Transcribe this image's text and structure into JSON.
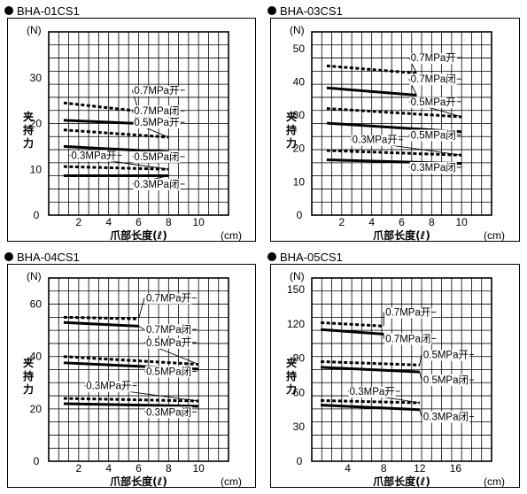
{
  "chart_data": [
    {
      "type": "line",
      "title": "BHA-01CS1",
      "ylabel": "夹持力",
      "yunit": "(N)",
      "xlabel": "爪部长度(ℓ)",
      "xunit": "(cm)",
      "xlim": [
        0,
        12
      ],
      "ylim": [
        0,
        40
      ],
      "xticks": [
        "0",
        "2",
        "4",
        "6",
        "8",
        "10"
      ],
      "yticks": [
        "10",
        "20",
        "30"
      ],
      "series": [
        {
          "name": "0.7MPa开",
          "style": "dashed",
          "x": [
            1,
            6
          ],
          "y": [
            24.5,
            22.7
          ],
          "label_x": 5.7,
          "label_y": 26.5
        },
        {
          "name": "0.7MPa闭",
          "style": "solid",
          "x": [
            1,
            6
          ],
          "y": [
            20.7,
            20.0
          ],
          "label_x": 5.7,
          "label_y": 22.0
        },
        {
          "name": "0.5MPa开",
          "style": "dashed",
          "x": [
            1,
            8
          ],
          "y": [
            18.6,
            17.0
          ],
          "label_x": 5.7,
          "label_y": 19.5
        },
        {
          "name": "0.5MPa闭",
          "style": "solid",
          "x": [
            1,
            8
          ],
          "y": [
            15.0,
            13.8
          ],
          "label_x": 5.7,
          "label_y": 12.0
        },
        {
          "name": "0.3MPa开",
          "style": "dashed",
          "x": [
            1,
            8
          ],
          "y": [
            10.6,
            10.0
          ],
          "label_x": 1.5,
          "label_y": 12.3
        },
        {
          "name": "0.3MPa闭",
          "style": "solid",
          "x": [
            1,
            8
          ],
          "y": [
            8.6,
            8.6
          ],
          "label_x": 5.7,
          "label_y": 6.0
        }
      ]
    },
    {
      "type": "line",
      "title": "BHA-03CS1",
      "ylabel": "夹持力",
      "yunit": "(N)",
      "xlabel": "爪部长度(ℓ)",
      "xunit": "(cm)",
      "xlim": [
        0,
        12
      ],
      "ylim": [
        0,
        55
      ],
      "xticks": [
        "0",
        "2",
        "4",
        "6",
        "8",
        "10"
      ],
      "yticks": [
        "10",
        "20",
        "30",
        "40",
        "50"
      ],
      "series": [
        {
          "name": "0.7MPa开",
          "style": "dashed",
          "x": [
            1,
            7
          ],
          "y": [
            44.8,
            42.6
          ],
          "label_x": 6.6,
          "label_y": 46.2
        },
        {
          "name": "0.7MPa闭",
          "style": "solid",
          "x": [
            1,
            7
          ],
          "y": [
            38.2,
            36.0
          ],
          "label_x": 6.6,
          "label_y": 39.8
        },
        {
          "name": "0.5MPa开",
          "style": "dashed",
          "x": [
            1,
            10
          ],
          "y": [
            32.0,
            29.5
          ],
          "label_x": 6.6,
          "label_y": 33.0
        },
        {
          "name": "0.5MPa闭",
          "style": "solid",
          "x": [
            1,
            10
          ],
          "y": [
            27.6,
            25.0
          ],
          "label_x": 6.6,
          "label_y": 23.0
        },
        {
          "name": "0.3MPa开",
          "style": "dashed",
          "x": [
            1,
            10
          ],
          "y": [
            19.4,
            18.0
          ],
          "label_x": 2.7,
          "label_y": 21.6
        },
        {
          "name": "0.3MPa闭",
          "style": "solid",
          "x": [
            1,
            10
          ],
          "y": [
            16.6,
            15.5
          ],
          "label_x": 6.6,
          "label_y": 13.3
        }
      ]
    },
    {
      "type": "line",
      "title": "BHA-04CS1",
      "ylabel": "夹持力",
      "yunit": "(N)",
      "xlabel": "爪部长度(ℓ)",
      "xunit": "(cm)",
      "xlim": [
        0,
        12
      ],
      "ylim": [
        0,
        70
      ],
      "xticks": [
        "0",
        "2",
        "4",
        "6",
        "8",
        "10"
      ],
      "yticks": [
        "20",
        "40",
        "60"
      ],
      "series": [
        {
          "name": "0.7MPa开",
          "style": "dashed",
          "x": [
            1,
            6
          ],
          "y": [
            55.0,
            54.4
          ],
          "label_x": 6.5,
          "label_y": 61.0
        },
        {
          "name": "0.7MPa闭",
          "style": "solid",
          "x": [
            1,
            6
          ],
          "y": [
            53.0,
            51.6
          ],
          "label_x": 6.5,
          "label_y": 49.0
        },
        {
          "name": "0.5MPa开",
          "style": "dashed",
          "x": [
            1,
            10
          ],
          "y": [
            40.0,
            37.0
          ],
          "label_x": 6.5,
          "label_y": 44.0
        },
        {
          "name": "0.5MPa闭",
          "style": "solid",
          "x": [
            1,
            10
          ],
          "y": [
            37.6,
            35.2
          ],
          "label_x": 6.5,
          "label_y": 33.0
        },
        {
          "name": "0.3MPa开",
          "style": "dashed",
          "x": [
            1,
            10
          ],
          "y": [
            24.0,
            23.0
          ],
          "label_x": 2.5,
          "label_y": 27.5
        },
        {
          "name": "0.3MPa闭",
          "style": "solid",
          "x": [
            1,
            10
          ],
          "y": [
            22.0,
            21.0
          ],
          "label_x": 6.5,
          "label_y": 17.5
        }
      ]
    },
    {
      "type": "line",
      "title": "BHA-05CS1",
      "ylabel": "夹持力",
      "yunit": "(N)",
      "xlabel": "爪部长度(ℓ)",
      "xunit": "(cm)",
      "xlim": [
        0,
        20
      ],
      "ylim": [
        0,
        160
      ],
      "xticks": [
        "0",
        "4",
        "8",
        "12",
        "16"
      ],
      "yticks": [
        "30",
        "60",
        "90",
        "120",
        "150"
      ],
      "series": [
        {
          "name": "0.7MPa开",
          "style": "dashed",
          "x": [
            1,
            8
          ],
          "y": [
            121,
            118
          ],
          "label_x": 8.2,
          "label_y": 127
        },
        {
          "name": "0.7MPa闭",
          "style": "solid",
          "x": [
            1,
            8
          ],
          "y": [
            115,
            111
          ],
          "label_x": 8.2,
          "label_y": 104
        },
        {
          "name": "0.5MPa开",
          "style": "dashed",
          "x": [
            1,
            12
          ],
          "y": [
            87,
            84
          ],
          "label_x": 12.4,
          "label_y": 90
        },
        {
          "name": "0.5MPa闭",
          "style": "solid",
          "x": [
            1,
            12
          ],
          "y": [
            82,
            78
          ],
          "label_x": 12.4,
          "label_y": 68
        },
        {
          "name": "0.3MPa开",
          "style": "dashed",
          "x": [
            1,
            12
          ],
          "y": [
            53,
            51
          ],
          "label_x": 4.2,
          "label_y": 58
        },
        {
          "name": "0.3MPa闭",
          "style": "solid",
          "x": [
            1,
            12
          ],
          "y": [
            49,
            45
          ],
          "label_x": 12.4,
          "label_y": 36
        }
      ]
    }
  ]
}
